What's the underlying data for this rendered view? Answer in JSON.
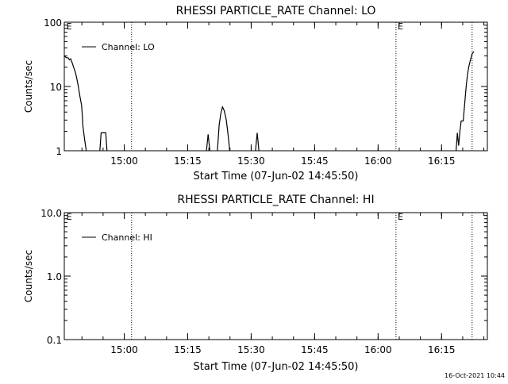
{
  "chart_data": [
    {
      "type": "line",
      "title": "RHESSI PARTICLE_RATE Channel: LO",
      "xlabel": "Start Time (07-Jun-02 14:45:50)",
      "ylabel": "Counts/sec",
      "x_unit": "minutes after 14:45:50",
      "xlim": [
        0,
        100
      ],
      "ylim": [
        1,
        100
      ],
      "yscale": "log",
      "x_ticks": [
        {
          "value": 14.17,
          "label": "15:00"
        },
        {
          "value": 29.17,
          "label": "15:15"
        },
        {
          "value": 44.17,
          "label": "15:30"
        },
        {
          "value": 59.17,
          "label": "15:45"
        },
        {
          "value": 74.17,
          "label": "16:00"
        },
        {
          "value": 89.17,
          "label": "16:15"
        }
      ],
      "y_ticks": [
        {
          "value": 1,
          "label": "1"
        },
        {
          "value": 10,
          "label": "10"
        },
        {
          "value": 100,
          "label": "100"
        }
      ],
      "vlines": [
        15.9,
        78.4,
        96.4
      ],
      "markers": [
        {
          "x": 0.3,
          "label": "E"
        },
        {
          "x": 78.6,
          "label": "E"
        }
      ],
      "legend": {
        "position": "top-left"
      },
      "series": [
        {
          "name": "Channel: LO",
          "segments": [
            [
              [
                0,
                30
              ],
              [
                0.5,
                28
              ],
              [
                0.9,
                28
              ],
              [
                1.2,
                26
              ],
              [
                1.5,
                27
              ],
              [
                1.8,
                24
              ],
              [
                2.2,
                20
              ],
              [
                2.7,
                16
              ],
              [
                3.2,
                11
              ],
              [
                3.7,
                7
              ],
              [
                4.1,
                5
              ],
              [
                4.4,
                2.4
              ],
              [
                4.8,
                1.5
              ],
              [
                5.2,
                1
              ]
            ],
            [
              [
                8.4,
                1
              ],
              [
                8.7,
                1.9
              ],
              [
                9.8,
                1.9
              ],
              [
                10.1,
                1
              ]
            ],
            [
              [
                33.6,
                1
              ],
              [
                34.0,
                1.8
              ],
              [
                34.4,
                1
              ]
            ],
            [
              [
                36.2,
                1
              ],
              [
                36.6,
                2.5
              ],
              [
                37.0,
                3.8
              ],
              [
                37.4,
                4.8
              ],
              [
                37.8,
                4.2
              ],
              [
                38.3,
                3
              ],
              [
                38.7,
                1.8
              ],
              [
                39.1,
                1
              ]
            ],
            [
              [
                45.2,
                1
              ],
              [
                45.6,
                1.9
              ],
              [
                46.0,
                1
              ]
            ],
            [
              [
                92.6,
                1
              ],
              [
                92.9,
                1.9
              ],
              [
                93.2,
                1.2
              ],
              [
                93.5,
                2.0
              ],
              [
                93.8,
                2.9
              ],
              [
                94.3,
                2.9
              ],
              [
                94.6,
                5
              ],
              [
                95.0,
                10
              ],
              [
                95.3,
                15
              ],
              [
                95.6,
                20
              ],
              [
                96.0,
                26
              ],
              [
                96.4,
                32
              ],
              [
                96.8,
                35
              ]
            ]
          ]
        }
      ]
    },
    {
      "type": "line",
      "title": "RHESSI PARTICLE_RATE Channel: HI",
      "xlabel": "Start Time (07-Jun-02 14:45:50)",
      "ylabel": "Counts/sec",
      "x_unit": "minutes after 14:45:50",
      "xlim": [
        0,
        100
      ],
      "ylim": [
        0.1,
        10
      ],
      "yscale": "log",
      "x_ticks": [
        {
          "value": 14.17,
          "label": "15:00"
        },
        {
          "value": 29.17,
          "label": "15:15"
        },
        {
          "value": 44.17,
          "label": "15:30"
        },
        {
          "value": 59.17,
          "label": "15:45"
        },
        {
          "value": 74.17,
          "label": "16:00"
        },
        {
          "value": 89.17,
          "label": "16:15"
        }
      ],
      "y_ticks": [
        {
          "value": 0.1,
          "label": "0.1"
        },
        {
          "value": 1,
          "label": "1.0"
        },
        {
          "value": 10,
          "label": "10.0"
        }
      ],
      "vlines": [
        15.9,
        78.4,
        96.4
      ],
      "markers": [
        {
          "x": 0.3,
          "label": "E"
        },
        {
          "x": 78.6,
          "label": "E"
        }
      ],
      "legend": {
        "position": "top-left"
      },
      "series": [
        {
          "name": "Channel: HI",
          "segments": []
        }
      ]
    }
  ],
  "footer": {
    "timestamp": "16-Oct-2021 10:44"
  }
}
